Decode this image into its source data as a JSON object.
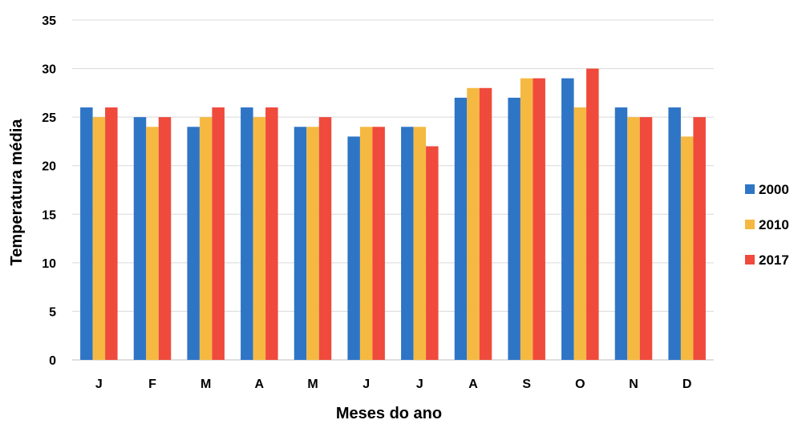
{
  "chart_data": {
    "type": "bar",
    "title": "",
    "xlabel": "Meses do ano",
    "ylabel": "Temperatura média",
    "ylim": [
      0,
      35
    ],
    "yticks": [
      0,
      5,
      10,
      15,
      20,
      25,
      30,
      35
    ],
    "grid": true,
    "legend_position": "right",
    "categories": [
      "J",
      "F",
      "M",
      "A",
      "M",
      "J",
      "J",
      "A",
      "S",
      "O",
      "N",
      "D"
    ],
    "series": [
      {
        "name": "2000",
        "color": "#2E75C6",
        "values": [
          26,
          25,
          24,
          26,
          24,
          23,
          24,
          27,
          27,
          29,
          26,
          26
        ]
      },
      {
        "name": "2010",
        "color": "#F5B942",
        "values": [
          25,
          24,
          25,
          25,
          24,
          24,
          24,
          28,
          29,
          26,
          25,
          23
        ]
      },
      {
        "name": "2017",
        "color": "#EF4A3C",
        "values": [
          26,
          25,
          26,
          26,
          25,
          24,
          22,
          28,
          29,
          30,
          25,
          25
        ]
      }
    ]
  }
}
